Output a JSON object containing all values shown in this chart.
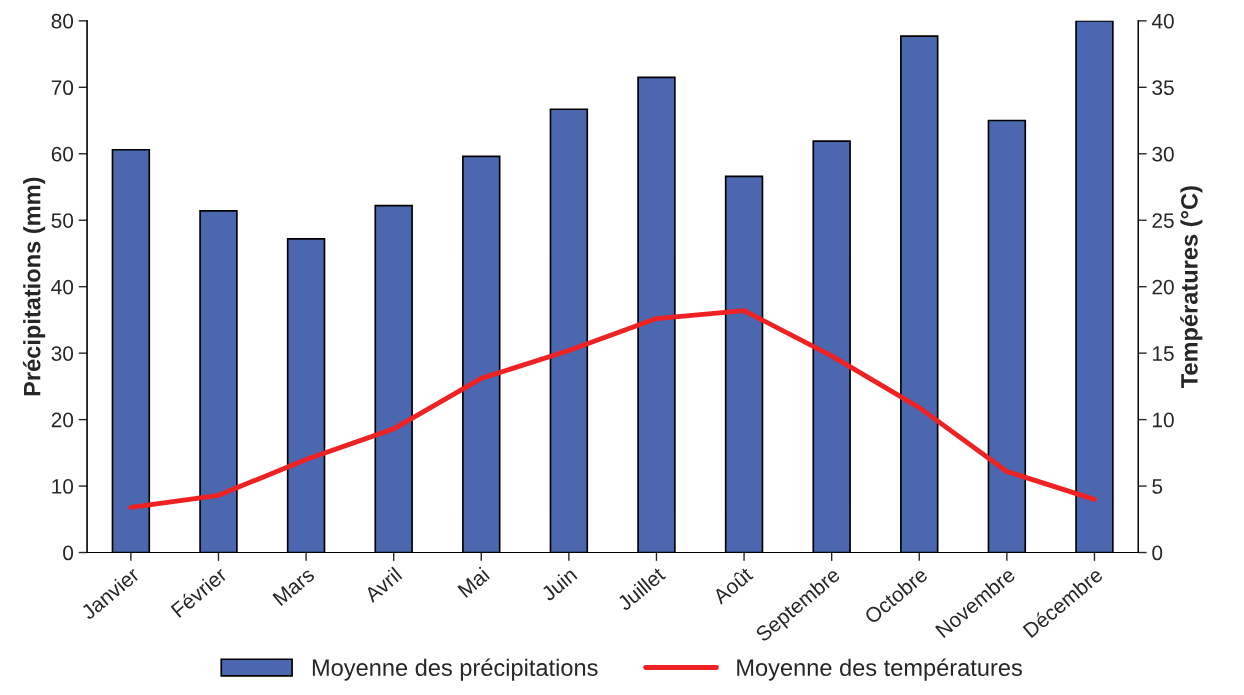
{
  "chart_data": {
    "type": "bar",
    "ylabel": "Précipitations (mm)",
    "y2label": "Températures (°C)",
    "categories": [
      "Janvier",
      "Février",
      "Mars",
      "Avril",
      "Mai",
      "Juin",
      "Juillet",
      "Août",
      "Septembre",
      "Octobre",
      "Novembre",
      "Décembre"
    ],
    "series": [
      {
        "name": "Moyenne des précipitations",
        "color": "#4a67b0",
        "values": [
          60.6,
          51.4,
          47.2,
          52.2,
          59.6,
          66.7,
          71.5,
          56.6,
          61.9,
          77.7,
          65.0,
          80.0
        ]
      },
      {
        "name": "Moyenne des températures",
        "type": "line",
        "axis": "y2",
        "color": "#ee2222",
        "values": [
          3.4,
          4.3,
          7.0,
          9.3,
          13.1,
          15.2,
          17.6,
          18.2,
          14.8,
          10.9,
          6.1,
          4.0
        ]
      }
    ],
    "ylim": [
      0,
      80
    ],
    "yticks": [
      0,
      10,
      20,
      30,
      40,
      50,
      60,
      70,
      80
    ],
    "y2lim": [
      0,
      40
    ],
    "y2ticks": [
      0,
      5,
      10,
      15,
      20,
      25,
      30,
      35,
      40
    ],
    "grid": false,
    "legend": "bottom",
    "marker": "none",
    "line_style": "solid"
  }
}
